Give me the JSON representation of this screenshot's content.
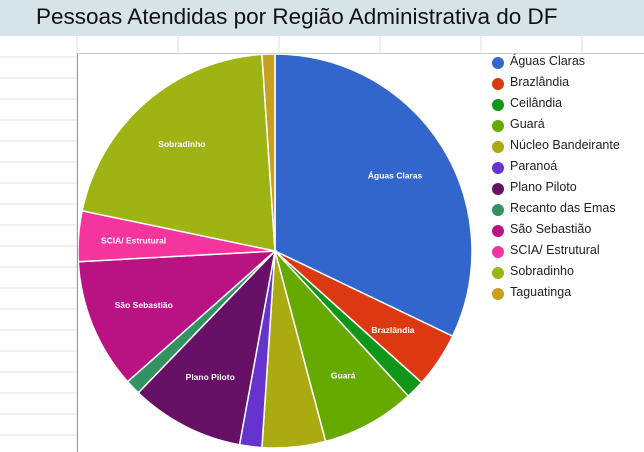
{
  "title": "Pessoas Atendidas por Região Administrativa do DF",
  "chart_data": {
    "type": "pie",
    "title": "Pessoas Atendidas por Região Administrativa do DF",
    "legend_position": "right",
    "start_angle_deg": 0,
    "direction": "clockwise",
    "slices": [
      {
        "label": "Águas Claras",
        "value": 33.4,
        "color": "#3366cc",
        "show_label": true
      },
      {
        "label": "Brazlândia",
        "value": 4.7,
        "color": "#dc3912",
        "show_label": true
      },
      {
        "label": "Ceilândia",
        "value": 1.6,
        "color": "#109618",
        "show_label": false
      },
      {
        "label": "Guará",
        "value": 8.0,
        "color": "#66aa00",
        "show_label": true
      },
      {
        "label": "Núcleo Bandeirante",
        "value": 5.4,
        "color": "#aaaa11",
        "show_label": false
      },
      {
        "label": "Paranoá",
        "value": 1.9,
        "color": "#6633cc",
        "show_label": false
      },
      {
        "label": "Plano Piloto",
        "value": 9.7,
        "color": "#661166",
        "show_label": true
      },
      {
        "label": "Recanto das Emas",
        "value": 1.3,
        "color": "#329262",
        "show_label": false
      },
      {
        "label": "São Sebastião",
        "value": 11.1,
        "color": "#b91383",
        "show_label": true
      },
      {
        "label": "SCIA/ Estrutural",
        "value": 4.3,
        "color": "#f4359e",
        "show_label": true
      },
      {
        "label": "Sobradinho",
        "value": 21.5,
        "color": "#9eb314",
        "show_label": true
      },
      {
        "label": "Taguatinga",
        "value": 1.1,
        "color": "#c8a020",
        "show_label": false
      }
    ]
  }
}
